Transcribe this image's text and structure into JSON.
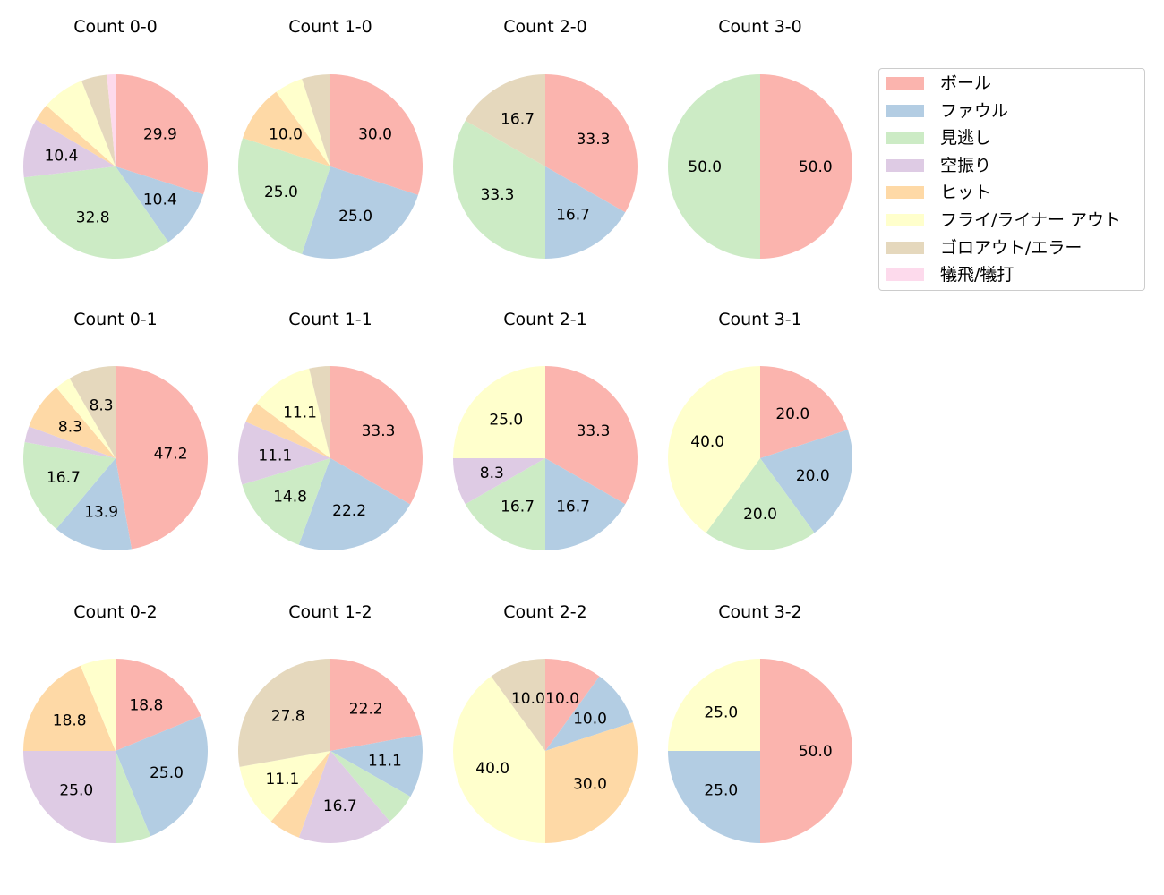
{
  "chart_data": {
    "type": "pie",
    "categories": [
      "ボール",
      "ファウル",
      "見逃し",
      "空振り",
      "ヒット",
      "フライ/ライナー アウト",
      "ゴロアウト/エラー",
      "犠飛/犠打"
    ],
    "colors": [
      "#fbb4ae",
      "#b3cde3",
      "#ccebc5",
      "#decbe4",
      "#fed9a6",
      "#ffffcc",
      "#e5d8bd",
      "#fddaec"
    ],
    "label_threshold": 8,
    "charts": [
      {
        "title": "Count 0-0",
        "values": [
          29.9,
          10.4,
          32.8,
          10.4,
          3.0,
          7.5,
          4.5,
          1.5
        ]
      },
      {
        "title": "Count 1-0",
        "values": [
          30.0,
          25.0,
          25.0,
          0,
          10.0,
          5.0,
          5.0,
          0
        ]
      },
      {
        "title": "Count 2-0",
        "values": [
          33.3,
          16.7,
          33.3,
          0,
          0,
          0,
          16.7,
          0
        ]
      },
      {
        "title": "Count 3-0",
        "values": [
          50.0,
          0,
          50.0,
          0,
          0,
          0,
          0,
          0
        ]
      },
      {
        "title": "Count 0-1",
        "values": [
          47.2,
          13.9,
          16.7,
          2.8,
          8.3,
          2.8,
          8.3,
          0
        ]
      },
      {
        "title": "Count 1-1",
        "values": [
          33.3,
          22.2,
          14.8,
          11.1,
          3.7,
          11.1,
          3.7,
          0
        ]
      },
      {
        "title": "Count 2-1",
        "values": [
          33.3,
          16.7,
          16.7,
          8.3,
          0,
          25.0,
          0,
          0
        ]
      },
      {
        "title": "Count 3-1",
        "values": [
          20.0,
          20.0,
          20.0,
          0,
          0,
          40.0,
          0,
          0
        ]
      },
      {
        "title": "Count 0-2",
        "values": [
          18.8,
          25.0,
          6.2,
          25.0,
          18.8,
          6.2,
          0,
          0
        ]
      },
      {
        "title": "Count 1-2",
        "values": [
          22.2,
          11.1,
          5.6,
          16.7,
          5.6,
          11.1,
          27.8,
          0
        ]
      },
      {
        "title": "Count 2-2",
        "values": [
          10.0,
          10.0,
          0,
          0,
          30.0,
          40.0,
          10.0,
          0
        ]
      },
      {
        "title": "Count 3-2",
        "values": [
          50.0,
          25.0,
          0,
          0,
          0,
          25.0,
          0,
          0
        ]
      }
    ]
  }
}
